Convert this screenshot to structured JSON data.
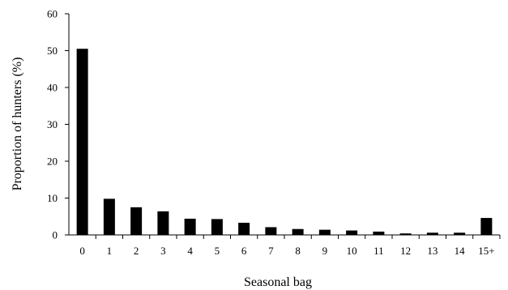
{
  "chart_data": {
    "type": "bar",
    "title": "",
    "xlabel": "Seasonal bag",
    "ylabel": "Proportion of hunters (%)",
    "categories": [
      "0",
      "1",
      "2",
      "3",
      "4",
      "5",
      "6",
      "7",
      "8",
      "9",
      "10",
      "11",
      "12",
      "13",
      "14",
      "15+"
    ],
    "values": [
      50.5,
      9.8,
      7.5,
      6.4,
      4.4,
      4.3,
      3.3,
      2.1,
      1.6,
      1.4,
      1.2,
      0.9,
      0.4,
      0.6,
      0.6,
      4.6
    ],
    "ylim": [
      0,
      60
    ],
    "yticks": [
      "0",
      "10",
      "20",
      "30",
      "40",
      "50",
      "60"
    ],
    "grid": false,
    "bar_color": "#000000"
  }
}
